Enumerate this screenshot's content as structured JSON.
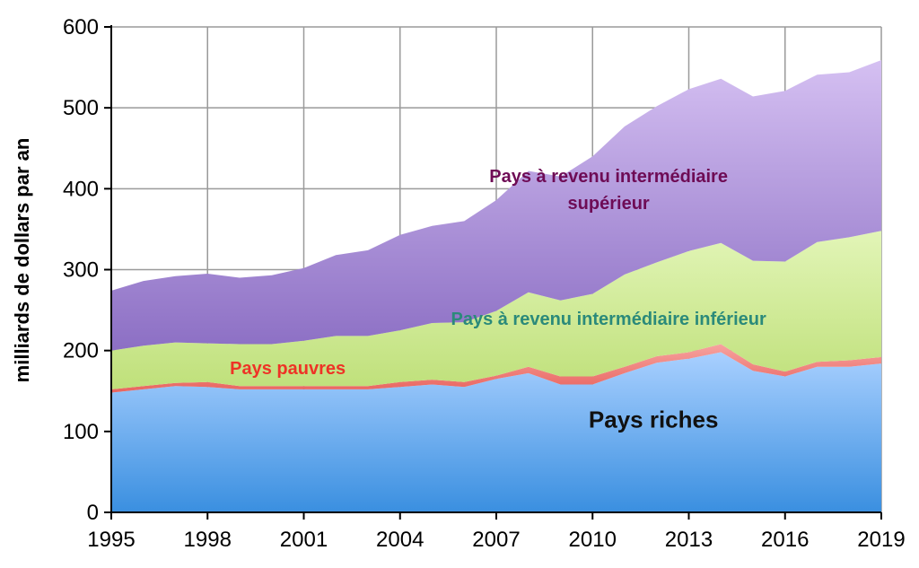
{
  "chart_data": {
    "type": "area",
    "stacked": true,
    "title": "",
    "xlabel": "",
    "ylabel": "milliards de dollars par an",
    "xlim": [
      1995,
      2019
    ],
    "ylim": [
      0,
      600
    ],
    "x_ticks": [
      1995,
      1998,
      2001,
      2004,
      2007,
      2010,
      2013,
      2016,
      2019
    ],
    "y_ticks": [
      0,
      100,
      200,
      300,
      400,
      500,
      600
    ],
    "grid": true,
    "legend": "none",
    "x": [
      1995,
      1996,
      1997,
      1998,
      1999,
      2000,
      2001,
      2002,
      2003,
      2004,
      2005,
      2006,
      2007,
      2008,
      2009,
      2010,
      2011,
      2012,
      2013,
      2014,
      2015,
      2016,
      2017,
      2018,
      2019
    ],
    "series": [
      {
        "name": "Pays riches",
        "color": "#6fa8f0",
        "values": [
          148,
          152,
          156,
          155,
          152,
          152,
          152,
          152,
          152,
          155,
          158,
          155,
          165,
          172,
          158,
          158,
          172,
          185,
          190,
          198,
          175,
          168,
          180,
          180,
          184
        ]
      },
      {
        "name": "Pays pauvres",
        "color": "#f08080",
        "values": [
          4,
          4,
          4,
          6,
          4,
          4,
          4,
          4,
          4,
          6,
          6,
          6,
          4,
          8,
          10,
          10,
          8,
          8,
          8,
          10,
          8,
          6,
          6,
          8,
          8
        ]
      },
      {
        "name": "Pays à revenu intermédiaire inférieur",
        "color": "#c6e88a",
        "values": [
          48,
          50,
          50,
          48,
          52,
          52,
          56,
          62,
          62,
          64,
          70,
          74,
          80,
          92,
          94,
          102,
          114,
          116,
          125,
          125,
          128,
          136,
          148,
          152,
          156
        ]
      },
      {
        "name": "Pays à revenu intermédiaire supérieur",
        "color": "#a98bd8",
        "values": [
          74,
          80,
          82,
          86,
          82,
          85,
          90,
          100,
          106,
          118,
          120,
          125,
          137,
          150,
          153,
          170,
          183,
          193,
          200,
          203,
          203,
          211,
          207,
          204,
          211
        ]
      }
    ],
    "labels": [
      {
        "text": "Pays à revenu intermédiaire",
        "color": "#6e0b55",
        "x": 2010.5,
        "y": 408
      },
      {
        "text": "supérieur",
        "color": "#6e0b55",
        "x": 2010.5,
        "y": 375
      },
      {
        "text": "Pays à revenu intermédiaire inférieur",
        "color": "#2b8a7a",
        "x": 2010.5,
        "y": 232
      },
      {
        "text": "Pays pauvres",
        "color": "#ee3326",
        "x": 2000.5,
        "y": 171
      },
      {
        "text": "Pays riches",
        "color": "#111111",
        "x": 2011.9,
        "y": 105
      }
    ]
  }
}
